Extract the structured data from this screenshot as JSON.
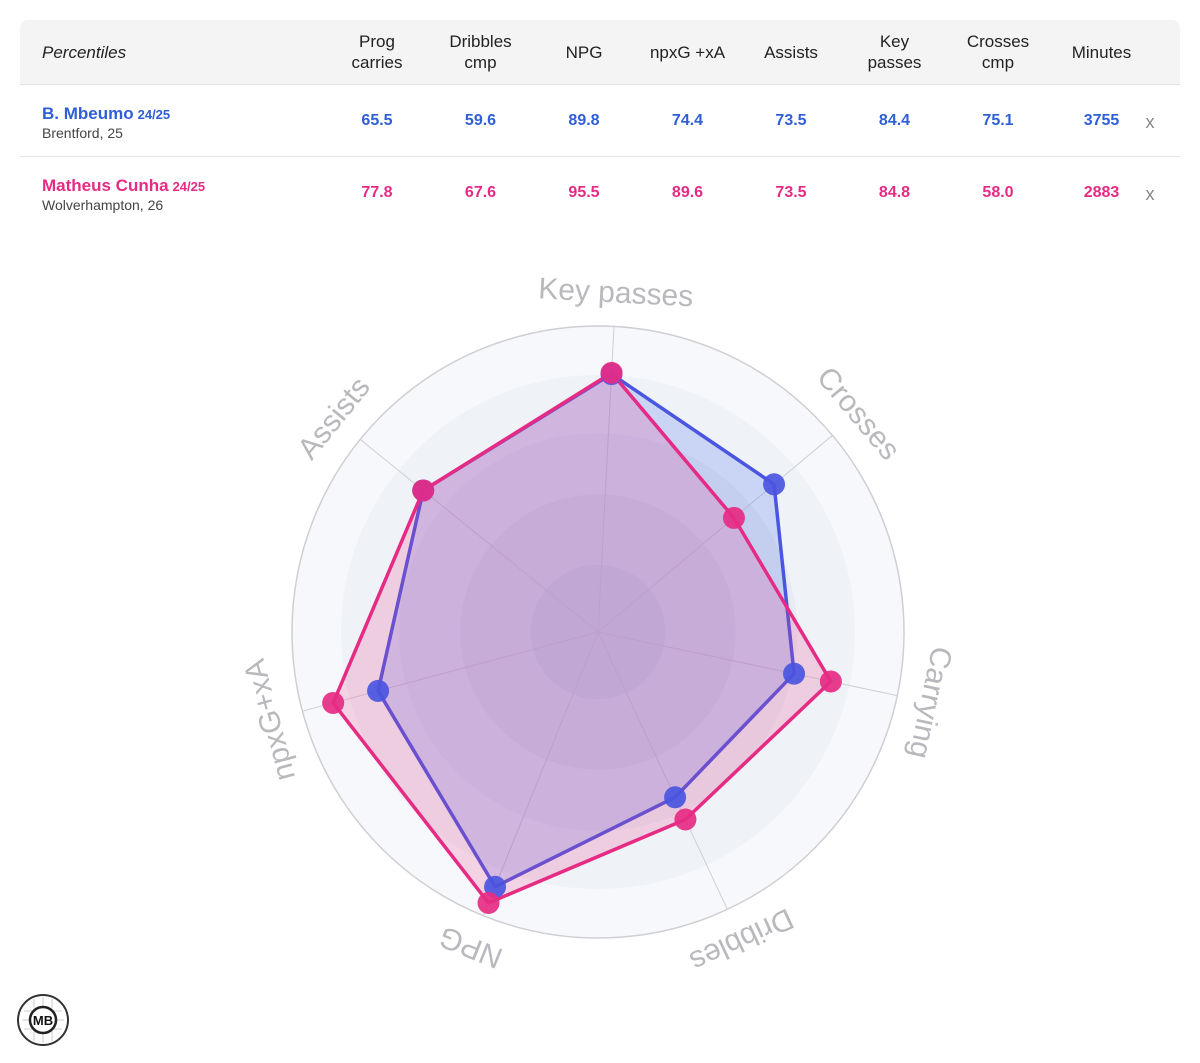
{
  "table": {
    "header_first": "Percentiles",
    "columns": [
      "Prog carries",
      "Dribbles cmp",
      "NPG",
      "npxG +xA",
      "Assists",
      "Key passes",
      "Crosses cmp",
      "Minutes"
    ],
    "column_lines": [
      [
        "Prog",
        "carries"
      ],
      [
        "Dribbles",
        "cmp"
      ],
      [
        "NPG"
      ],
      [
        "npxG +xA"
      ],
      [
        "Assists"
      ],
      [
        "Key",
        "passes"
      ],
      [
        "Crosses",
        "cmp"
      ],
      [
        "Minutes"
      ]
    ],
    "remove_label": "x"
  },
  "players": [
    {
      "name": "B. Mbeumo",
      "season": "24/25",
      "meta": "Brentford, 25",
      "color": "#2f5fd6",
      "values": [
        "65.5",
        "59.6",
        "89.8",
        "74.4",
        "73.5",
        "84.4",
        "75.1",
        "3755"
      ]
    },
    {
      "name": "Matheus Cunha",
      "season": "24/25",
      "meta": "Wolverhampton, 26",
      "color": "#e62b84",
      "values": [
        "77.8",
        "67.6",
        "95.5",
        "89.6",
        "73.5",
        "84.8",
        "58.0",
        "2883"
      ]
    }
  ],
  "chart_data": {
    "type": "radar",
    "axes": [
      "Key passes",
      "Crosses",
      "Carrying",
      "Dribbles",
      "NPG",
      "npxG+xA",
      "Assists"
    ],
    "range": [
      0,
      100
    ],
    "grid": true,
    "series": [
      {
        "name": "B. Mbeumo",
        "color": "#4a55e0",
        "values": [
          84.4,
          75.1,
          65.5,
          59.6,
          89.8,
          74.4,
          73.5
        ]
      },
      {
        "name": "Matheus Cunha",
        "color": "#e62b84",
        "values": [
          84.8,
          58.0,
          77.8,
          67.6,
          95.5,
          89.6,
          73.5
        ]
      }
    ]
  },
  "logo": {
    "text": "MB"
  }
}
